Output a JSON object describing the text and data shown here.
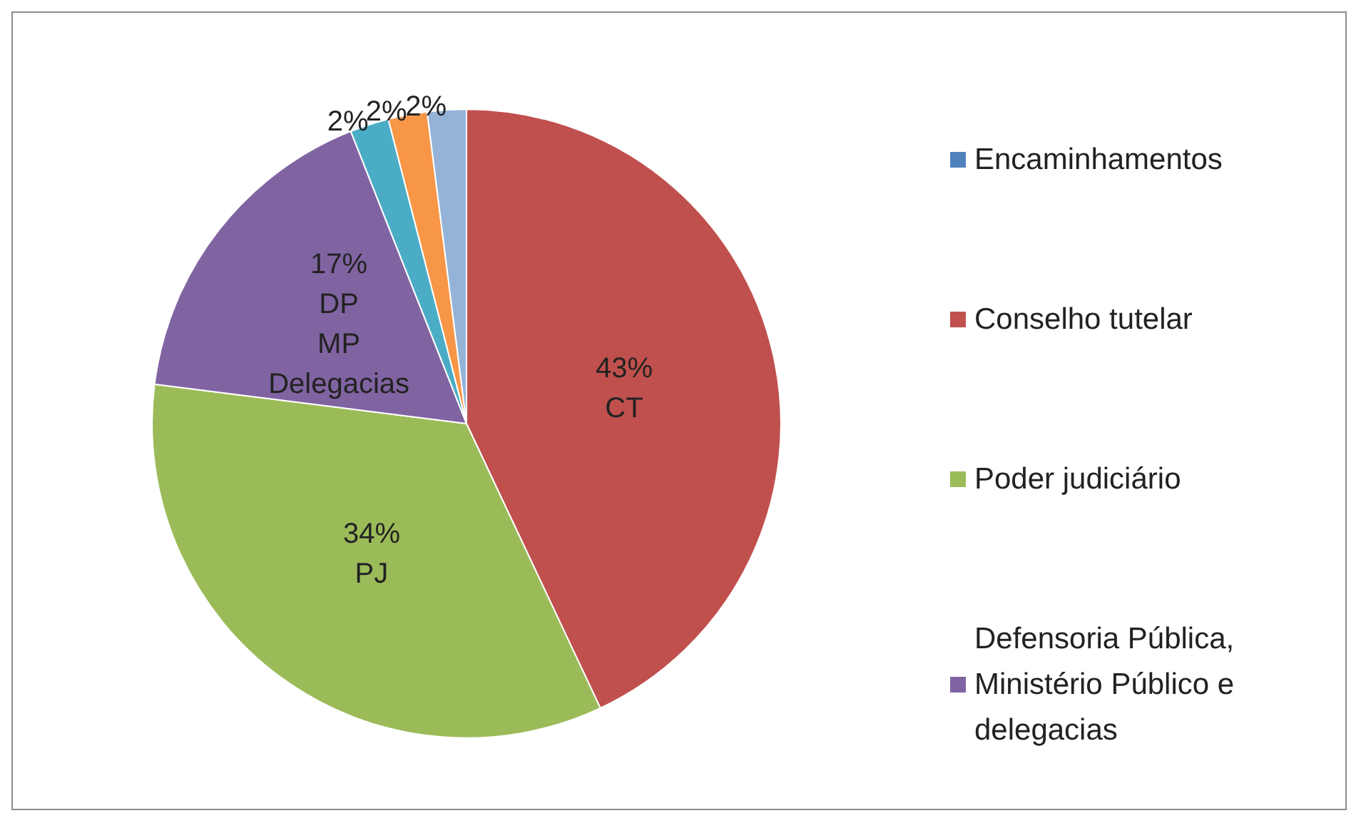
{
  "chart_data": {
    "type": "pie",
    "categories": [
      "Encaminhamentos",
      "Conselho tutelar",
      "Poder judiciário",
      "Defensoria Pública, Ministério Público e delegacias",
      null,
      null,
      null
    ],
    "values": [
      0,
      43,
      34,
      17,
      2,
      2,
      2
    ],
    "colors": [
      "#4f81bd",
      "#c0504d",
      "#9bbb59",
      "#8064a2",
      "#4bacc6",
      "#f79646",
      "#95b3d7"
    ],
    "value_labels": [
      null,
      "43%\nCT",
      "34%\nPJ",
      "17%\nDP\nMP\nDelegacias",
      "2%",
      "2%",
      "2%"
    ],
    "legend": "right"
  }
}
